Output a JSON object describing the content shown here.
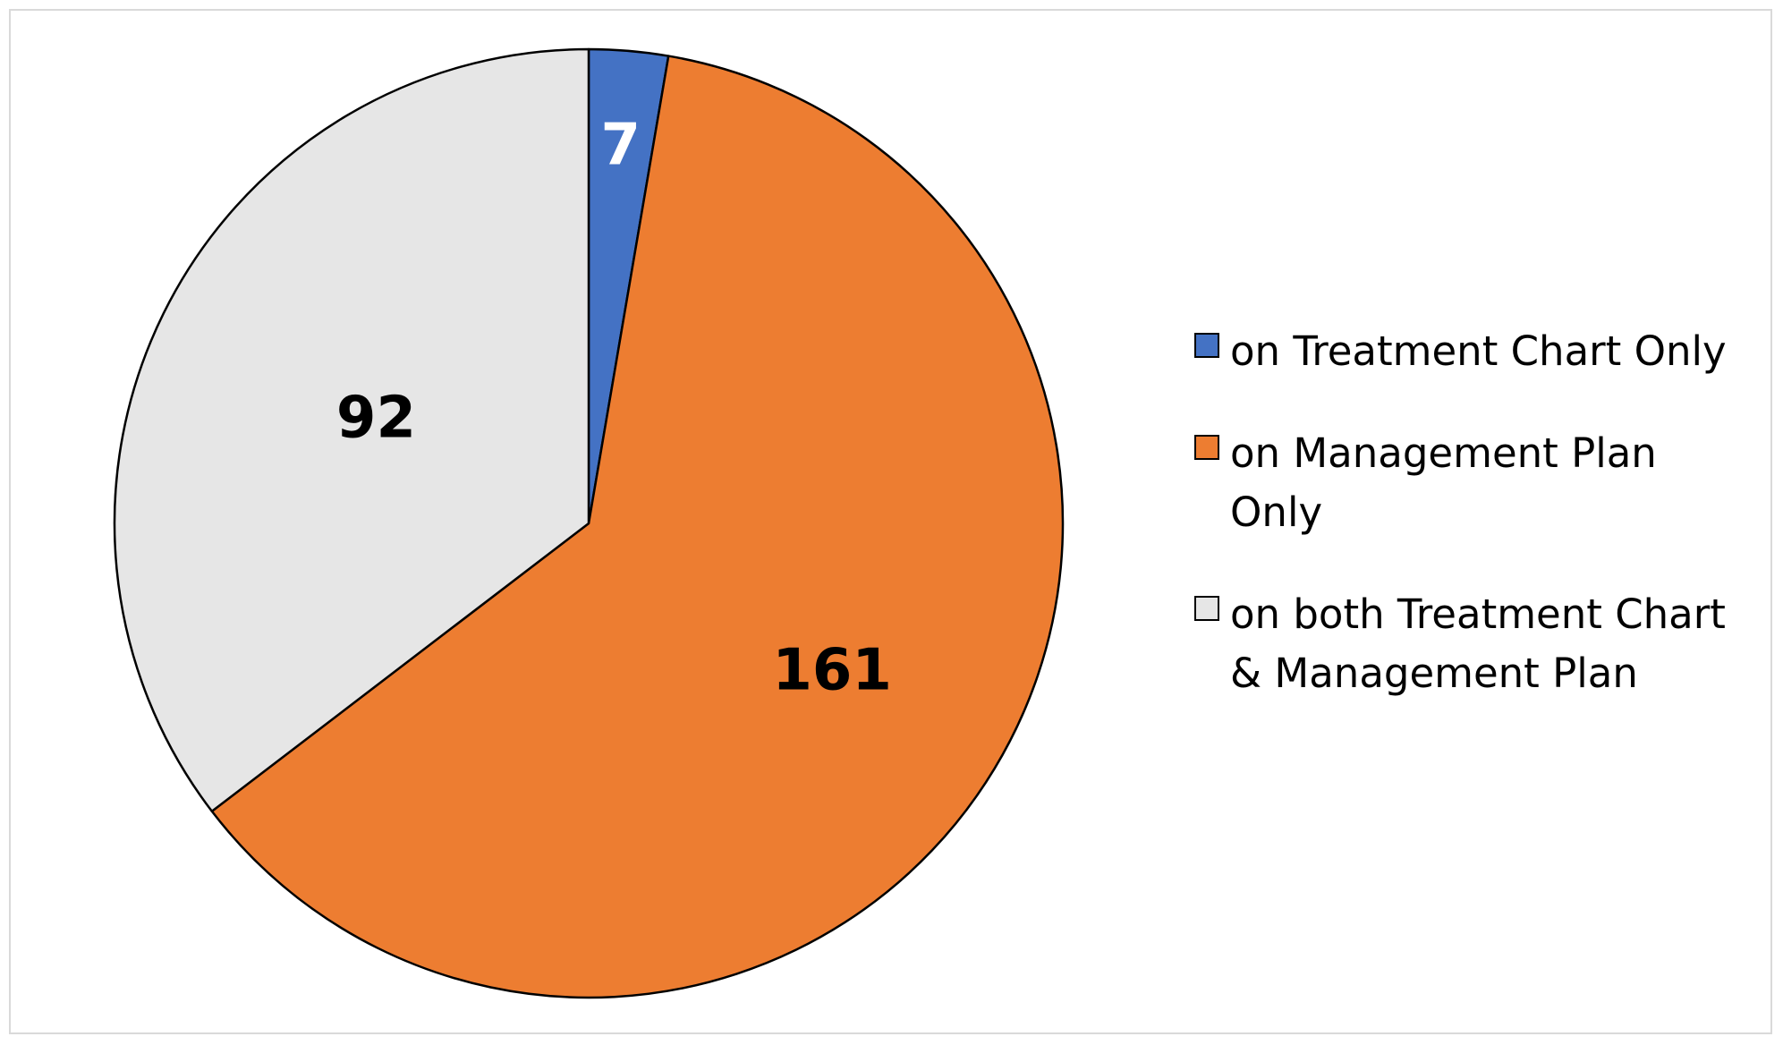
{
  "chart_data": {
    "type": "pie",
    "title": "",
    "categories": [
      "on Treatment Chart Only",
      "on Management Plan Only",
      "on both Treatment Chart & Management Plan"
    ],
    "values": [
      7,
      161,
      92
    ],
    "labels": [
      "7",
      "161",
      "92"
    ],
    "colors": [
      "#4472C4",
      "#ED7D31",
      "#E6E6E6"
    ],
    "label_colors": [
      "#FFFFFF",
      "#000000",
      "#000000"
    ],
    "start_angle_deg": 0,
    "direction": "clockwise",
    "legend": "right"
  }
}
